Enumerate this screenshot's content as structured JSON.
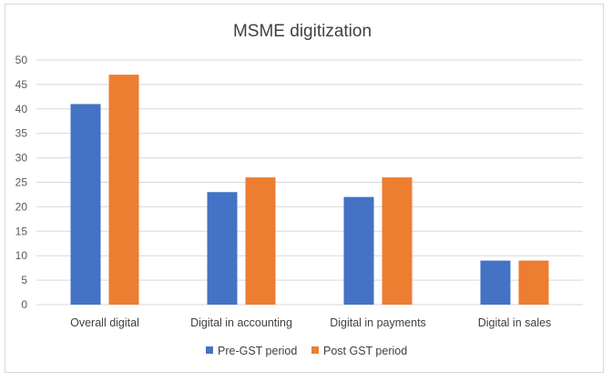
{
  "chart_data": {
    "type": "bar",
    "title": "MSME digitization",
    "categories": [
      "Overall digital",
      "Digital in accounting",
      "Digital in payments",
      "Digital in sales"
    ],
    "series": [
      {
        "name": "Pre-GST period",
        "values": [
          41,
          23,
          22,
          9
        ],
        "color": "#4472c4"
      },
      {
        "name": "Post GST period",
        "values": [
          47,
          26,
          26,
          9
        ],
        "color": "#ed7d31"
      }
    ],
    "ylim": [
      0,
      50
    ],
    "yticks": [
      0,
      5,
      10,
      15,
      20,
      25,
      30,
      35,
      40,
      45,
      50
    ],
    "grid": true,
    "legend_position": "bottom"
  }
}
